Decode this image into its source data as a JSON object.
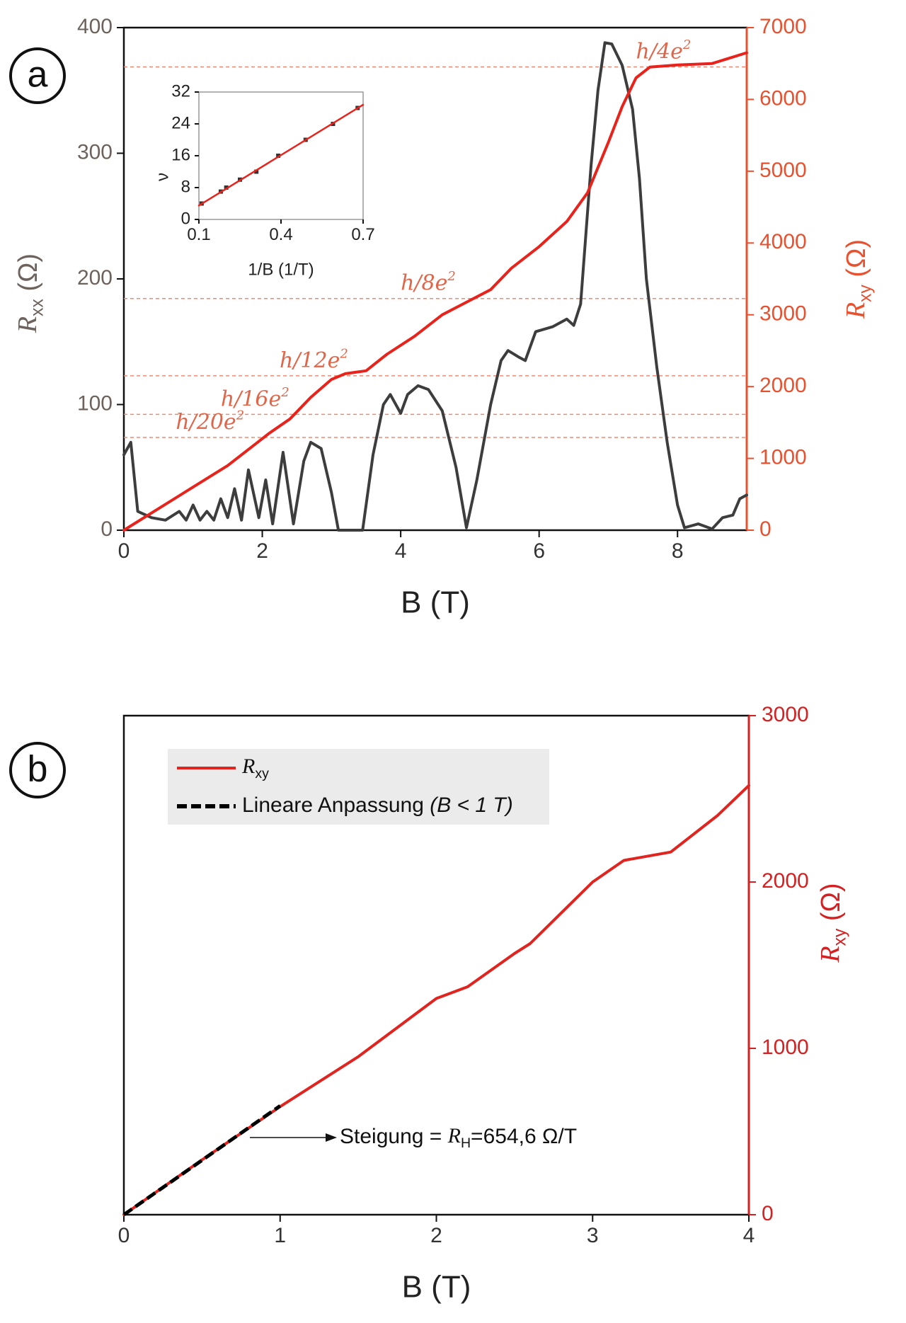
{
  "chart_data": [
    {
      "type": "line",
      "panel": "a",
      "xlabel": "B (T)",
      "xlim": [
        0,
        9
      ],
      "xticks": [
        0,
        2,
        4,
        6,
        8
      ],
      "ylim": [
        0,
        400
      ],
      "yticks": [
        0,
        100,
        200,
        300,
        400
      ],
      "ycolor": "#6e625d",
      "y2lim": [
        0,
        7000
      ],
      "y2ticks": [
        0,
        1000,
        2000,
        3000,
        4000,
        5000,
        6000,
        7000
      ],
      "y2color": "#e8502e",
      "ylabel": {
        "symbol": "R",
        "subscript": "xx",
        "unit": " (Ω)"
      },
      "y2label": {
        "symbol": "R",
        "subscript": "xy",
        "unit": " (Ω)"
      },
      "levels": [
        {
          "value": 6453,
          "label": {
            "text": "h/4e",
            "sup": "2"
          }
        },
        {
          "value": 3227,
          "label": {
            "text": "h/8e",
            "sup": "2"
          }
        },
        {
          "value": 2151,
          "label": {
            "text": "h/12e",
            "sup": "2"
          }
        },
        {
          "value": 1613,
          "label": {
            "text": "h/16e",
            "sup": "2"
          }
        },
        {
          "value": 1291,
          "label": {
            "text": "h/20e",
            "sup": "2"
          }
        }
      ],
      "series": [
        {
          "color": "#3d3d3d",
          "x": [
            0,
            0.1,
            0.2,
            0.4,
            0.6,
            0.8,
            0.9,
            1.0,
            1.1,
            1.2,
            1.3,
            1.4,
            1.5,
            1.6,
            1.7,
            1.8,
            1.95,
            2.05,
            2.15,
            2.3,
            2.45,
            2.6,
            2.7,
            2.85,
            3.0,
            3.1,
            3.45,
            3.6,
            3.75,
            3.85,
            4.0,
            4.1,
            4.25,
            4.4,
            4.6,
            4.8,
            4.95,
            5.1,
            5.3,
            5.45,
            5.55,
            5.7,
            5.8,
            5.95,
            6.2,
            6.4,
            6.5,
            6.6,
            6.75,
            6.85,
            6.95,
            7.05,
            7.2,
            7.35,
            7.45,
            7.55,
            7.7,
            7.85,
            8.0,
            8.1,
            8.3,
            8.5,
            8.65,
            8.8,
            8.9,
            9.0
          ],
          "values": [
            60,
            70,
            15,
            10,
            8,
            15,
            8,
            20,
            8,
            15,
            8,
            25,
            10,
            33,
            8,
            48,
            10,
            40,
            5,
            62,
            5,
            55,
            70,
            65,
            30,
            0,
            0,
            60,
            100,
            108,
            93,
            108,
            115,
            112,
            95,
            50,
            2,
            40,
            100,
            135,
            143,
            138,
            135,
            158,
            162,
            168,
            163,
            180,
            290,
            350,
            388,
            387,
            370,
            335,
            280,
            200,
            130,
            70,
            20,
            2,
            5,
            1,
            10,
            12,
            25,
            28
          ]
        },
        {
          "color": "#e8231c",
          "axis": "y2",
          "x": [
            0,
            0.5,
            1,
            1.5,
            1.9,
            2.1,
            2.4,
            2.7,
            3.0,
            3.2,
            3.5,
            3.8,
            4.2,
            4.6,
            5.0,
            5.3,
            5.6,
            6.0,
            6.4,
            6.7,
            7.0,
            7.2,
            7.4,
            7.6,
            8.0,
            8.5,
            9.0
          ],
          "values": [
            0,
            300,
            600,
            900,
            1200,
            1350,
            1550,
            1850,
            2100,
            2180,
            2220,
            2450,
            2700,
            3000,
            3200,
            3350,
            3650,
            3950,
            4300,
            4700,
            5400,
            5900,
            6300,
            6450,
            6480,
            6500,
            6650
          ]
        }
      ]
    },
    {
      "type": "scatter",
      "xlabel": "1/B (1/T)",
      "ylabel": "ν",
      "xlim": [
        0.1,
        0.7
      ],
      "xticks": [
        0.1,
        0.4,
        0.7
      ],
      "ylim": [
        0,
        32
      ],
      "yticks": [
        0,
        8,
        16,
        24,
        32
      ],
      "series": [
        {
          "color": "#333333",
          "marker": "square",
          "x": [
            0.11,
            0.18,
            0.2,
            0.25,
            0.31,
            0.39,
            0.49,
            0.59,
            0.68
          ],
          "values": [
            4,
            7,
            8,
            10,
            12,
            16,
            20,
            24,
            28
          ]
        },
        {
          "color": "#e8231c",
          "x": [
            0.1,
            0.7
          ],
          "values": [
            3.5,
            28.8
          ]
        }
      ]
    },
    {
      "type": "line",
      "panel": "b",
      "xlabel": "B (T)",
      "xlim": [
        0,
        4
      ],
      "xticks": [
        0,
        1,
        2,
        3,
        4
      ],
      "y2lim": [
        0,
        3000
      ],
      "y2ticks": [
        0,
        1000,
        2000,
        3000
      ],
      "y2color": "#d42020",
      "y2label": {
        "symbol": "R",
        "subscript": "xy",
        "unit": " (Ω)"
      },
      "annotation": {
        "prefix": "Steigung = ",
        "symbol": "R",
        "subscript": "H",
        "suffix": "=654,6 Ω/T"
      },
      "series": [
        {
          "name": {
            "symbol": "R",
            "subscript": "xy"
          },
          "color": "#e02420",
          "axis": "y2",
          "x": [
            0,
            0.5,
            1,
            1.5,
            2,
            2.2,
            2.5,
            2.6,
            3,
            3.2,
            3.5,
            3.8,
            4
          ],
          "values": [
            0,
            330,
            650,
            950,
            1300,
            1370,
            1570,
            1630,
            2000,
            2130,
            2180,
            2400,
            2580
          ]
        },
        {
          "name": {
            "text": "Lineare Anpassung ",
            "italic": "(B < 1 T)"
          },
          "color": "#000000",
          "axis": "y2",
          "dash": true,
          "x": [
            0,
            1
          ],
          "values": [
            0,
            654.6
          ]
        }
      ]
    }
  ]
}
